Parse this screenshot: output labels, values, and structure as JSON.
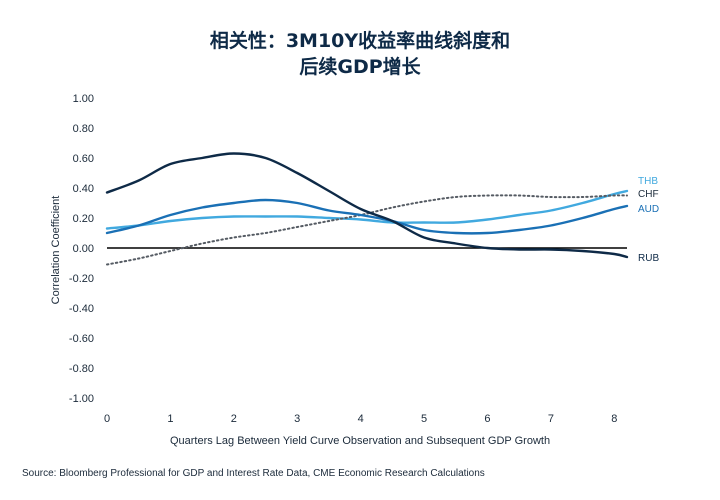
{
  "chart_data": {
    "type": "line",
    "title_line1": "相关性：3M10Y收益率曲线斜度和",
    "title_line2": "后续GDP增长",
    "xlabel": "Quarters Lag Between Yield Curve Observation and Subsequent GDP Growth",
    "ylabel": "Correlation Coefficient",
    "xlim": [
      0,
      8.2
    ],
    "ylim": [
      -1.0,
      1.0
    ],
    "x_ticks": [
      0,
      1,
      2,
      3,
      4,
      5,
      6,
      7,
      8
    ],
    "y_ticks": [
      1.0,
      0.8,
      0.6,
      0.4,
      0.2,
      0.0,
      -0.2,
      -0.4,
      -0.6,
      -0.8,
      -1.0
    ],
    "y_tick_labels": [
      "1.00",
      "0.80",
      "0.60",
      "0.40",
      "0.20",
      "0.00",
      "-0.20",
      "-0.40",
      "-0.60",
      "-0.80",
      "-1.00"
    ],
    "x": [
      0,
      0.5,
      1,
      1.5,
      2,
      2.5,
      3,
      3.5,
      4,
      4.5,
      5,
      5.5,
      6,
      6.5,
      7,
      7.5,
      8,
      8.2
    ],
    "series": [
      {
        "name": "THB",
        "color": "#41a9df",
        "dash": false,
        "values": [
          0.13,
          0.15,
          0.18,
          0.2,
          0.21,
          0.21,
          0.21,
          0.2,
          0.19,
          0.17,
          0.17,
          0.17,
          0.19,
          0.22,
          0.25,
          0.3,
          0.36,
          0.38
        ]
      },
      {
        "name": "CHF",
        "color": "#555b63",
        "dash": true,
        "values": [
          -0.11,
          -0.07,
          -0.02,
          0.03,
          0.07,
          0.1,
          0.14,
          0.18,
          0.22,
          0.27,
          0.31,
          0.34,
          0.35,
          0.35,
          0.34,
          0.34,
          0.35,
          0.35
        ]
      },
      {
        "name": "AUD",
        "color": "#1a70b5",
        "dash": false,
        "values": [
          0.1,
          0.15,
          0.22,
          0.27,
          0.3,
          0.32,
          0.3,
          0.25,
          0.22,
          0.18,
          0.12,
          0.1,
          0.1,
          0.12,
          0.15,
          0.2,
          0.26,
          0.28
        ]
      },
      {
        "name": "RUB",
        "color": "#0e2a47",
        "dash": false,
        "values": [
          0.37,
          0.45,
          0.56,
          0.6,
          0.63,
          0.6,
          0.5,
          0.38,
          0.26,
          0.18,
          0.07,
          0.03,
          0.0,
          -0.01,
          -0.01,
          -0.02,
          -0.04,
          -0.06
        ]
      }
    ],
    "legend_placement": "right, at line ends",
    "zero_line": true,
    "grid": false
  },
  "source": "Source: Bloomberg Professional for GDP and Interest Rate Data, CME Economic Research Calculations"
}
